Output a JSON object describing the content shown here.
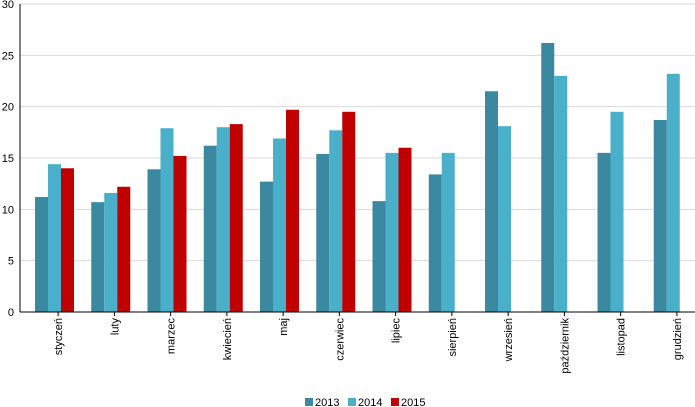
{
  "chart_data": {
    "type": "bar",
    "categories": [
      "styczeń",
      "luty",
      "marzec",
      "kwiecień",
      "maj",
      "czerwiec",
      "lipiec",
      "sierpień",
      "wrzesień",
      "październik",
      "listopad",
      "grudzień"
    ],
    "series": [
      {
        "name": "2013",
        "color": "#3a89a1",
        "values": [
          11.2,
          10.7,
          13.9,
          16.2,
          12.7,
          15.4,
          10.8,
          13.4,
          21.5,
          26.2,
          15.5,
          18.7
        ]
      },
      {
        "name": "2014",
        "color": "#4aafc8",
        "values": [
          14.4,
          11.6,
          17.9,
          18.0,
          16.9,
          17.7,
          15.5,
          15.5,
          18.1,
          23.0,
          19.5,
          23.2
        ]
      },
      {
        "name": "2015",
        "color": "#c00000",
        "values": [
          14.0,
          12.2,
          15.2,
          18.3,
          19.7,
          19.5,
          16.0,
          null,
          null,
          null,
          null,
          null
        ]
      }
    ],
    "y_ticks": [
      "0",
      "5",
      "10",
      "15",
      "20",
      "25",
      "30"
    ],
    "ylim": [
      0,
      30
    ],
    "grid": true,
    "legend_position": "bottom-center",
    "title": "",
    "xlabel": "",
    "ylabel": ""
  }
}
